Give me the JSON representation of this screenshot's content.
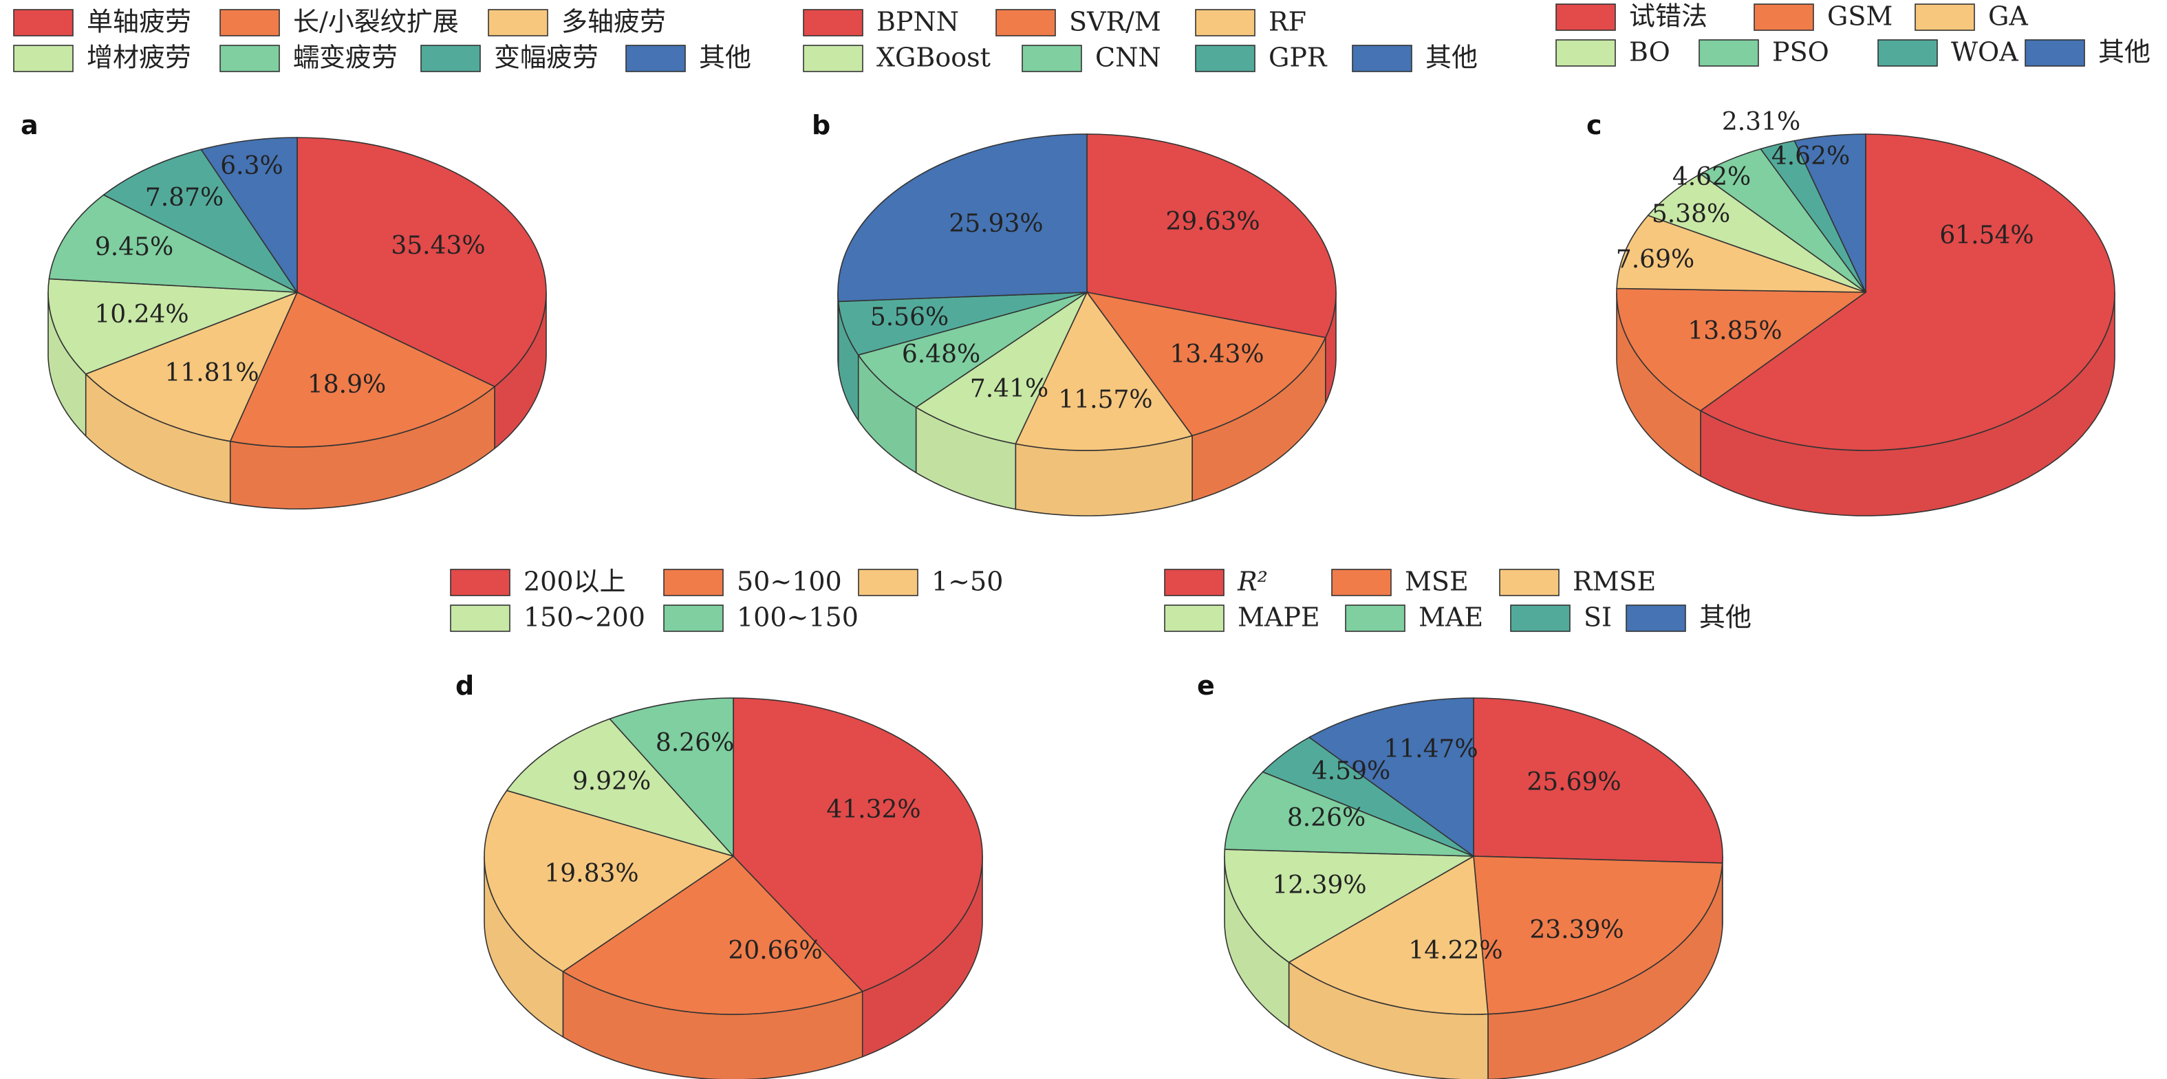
{
  "colors": {
    "red": "#e34a4a",
    "orange": "#f07c4a",
    "yellow": "#f7c77d",
    "lightgreen": "#c8e8a6",
    "green": "#7fcfa0",
    "teal": "#52ab9a",
    "blue": "#4573b3",
    "edge": "#333333"
  },
  "chart_data": [
    {
      "type": "pie",
      "panel_label": "a",
      "categories": [
        "单轴疲劳",
        "长/小裂纹扩展",
        "多轴疲劳",
        "增材疲劳",
        "蠕变疲劳",
        "变幅疲劳",
        "其他"
      ],
      "values": [
        35.43,
        18.9,
        11.81,
        10.24,
        9.45,
        7.87,
        6.3
      ],
      "labels": [
        "35.43%",
        "18.9%",
        "11.81%",
        "10.24%",
        "9.45%",
        "7.87%",
        "6.3%"
      ],
      "colors": [
        "#e34a4a",
        "#f07c4a",
        "#f7c77d",
        "#c8e8a6",
        "#7fcfa0",
        "#52ab9a",
        "#4573b3"
      ],
      "legend_position": "top"
    },
    {
      "type": "pie",
      "panel_label": "b",
      "categories": [
        "BPNN",
        "SVR/M",
        "RF",
        "XGBoost",
        "CNN",
        "GPR",
        "其他"
      ],
      "values": [
        29.63,
        13.43,
        11.57,
        7.41,
        6.48,
        5.56,
        25.93
      ],
      "labels": [
        "29.63%",
        "13.43%",
        "11.57%",
        "7.41%",
        "6.48%",
        "5.56%",
        "25.93%"
      ],
      "colors": [
        "#e34a4a",
        "#f07c4a",
        "#f7c77d",
        "#c8e8a6",
        "#7fcfa0",
        "#52ab9a",
        "#4573b3"
      ],
      "legend_position": "top"
    },
    {
      "type": "pie",
      "panel_label": "c",
      "categories": [
        "试错法",
        "GSM",
        "GA",
        "BO",
        "PSO",
        "WOA",
        "其他"
      ],
      "values": [
        61.54,
        13.85,
        7.69,
        5.38,
        4.62,
        2.31,
        4.62
      ],
      "labels": [
        "61.54%",
        "13.85%",
        "7.69%",
        "5.38%",
        "4.62%",
        "2.31%",
        "4.62%"
      ],
      "colors": [
        "#e34a4a",
        "#f07c4a",
        "#f7c77d",
        "#c8e8a6",
        "#7fcfa0",
        "#52ab9a",
        "#4573b3"
      ],
      "legend_position": "top"
    },
    {
      "type": "pie",
      "panel_label": "d",
      "categories": [
        "200以上",
        "50~100",
        "1~50",
        "150~200",
        "100~150"
      ],
      "values": [
        41.32,
        20.66,
        19.83,
        9.92,
        8.26
      ],
      "labels": [
        "41.32%",
        "20.66%",
        "19.83%",
        "9.92%",
        "8.26%"
      ],
      "colors": [
        "#e34a4a",
        "#f07c4a",
        "#f7c77d",
        "#c8e8a6",
        "#7fcfa0"
      ],
      "legend_position": "top"
    },
    {
      "type": "pie",
      "panel_label": "e",
      "categories": [
        "R²",
        "MSE",
        "RMSE",
        "MAPE",
        "MAE",
        "SI",
        "其他"
      ],
      "values": [
        25.69,
        23.39,
        14.22,
        12.39,
        8.26,
        4.59,
        11.47
      ],
      "labels": [
        "25.69%",
        "23.39%",
        "14.22%",
        "12.39%",
        "8.26%",
        "4.59%",
        "11.47%"
      ],
      "colors": [
        "#e34a4a",
        "#f07c4a",
        "#f7c77d",
        "#c8e8a6",
        "#7fcfa0",
        "#52ab9a",
        "#4573b3"
      ],
      "legend_position": "top"
    }
  ]
}
